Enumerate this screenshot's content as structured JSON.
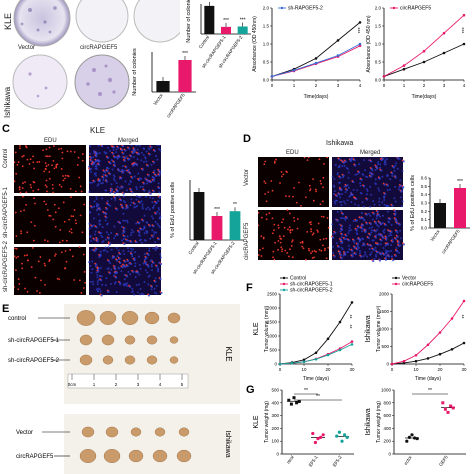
{
  "panel_a": {
    "row_labels": [
      "KLE",
      "Ishikawa"
    ],
    "dish_labels": [
      "Vector",
      "circRAPGEF5"
    ],
    "top_bar_ylabel": "Number of colonies",
    "top_bar_categories": [
      "Control",
      "sh-circRAPGEF5-1",
      "sh-circRAPGEF5-2"
    ],
    "bottom_bar_ylabel": "Number of colonies",
    "bottom_bar_categories": [
      "Vector",
      "circRAPGEF5"
    ],
    "sig": "***"
  },
  "panel_b": {
    "left": {
      "legend": [
        "sh-RAPGEF5-2"
      ],
      "ylabel": "Absorbance (OD 450nm)",
      "xlabel": "Time(days)",
      "xticks": [
        "0",
        "1",
        "2",
        "3",
        "4"
      ],
      "yticks": [
        "0.0",
        "0.5",
        "1.0",
        "1.5",
        "2.0"
      ],
      "sig": "***"
    },
    "right": {
      "legend": [
        "circRAPGEF5"
      ],
      "ylabel": "Absorbance (OD 450 nm)",
      "xlabel": "Time(days)",
      "xticks": [
        "0",
        "1",
        "2",
        "3",
        "4"
      ],
      "yticks": [
        "0.0",
        "0.5",
        "1.0",
        "1.5",
        "2.0"
      ],
      "sig": "***"
    }
  },
  "panel_c": {
    "letter": "C",
    "title": "KLE",
    "columns": [
      "EDU",
      "Merged"
    ],
    "rows": [
      "Control",
      "sh-circRAPGEF5-1",
      "sh-circRAPGEF5-2"
    ],
    "bar_ylabel": "% of EdU positive cells",
    "bar_categories": [
      "Control",
      "sh-circRAPGEF5-1",
      "sh-circRAPGEF5-2"
    ],
    "sig": [
      "***",
      "**"
    ]
  },
  "panel_d": {
    "letter": "D",
    "title": "Ishikawa",
    "columns": [
      "EDU",
      "Merged"
    ],
    "rows": [
      "Vector",
      "circRAPGEF5"
    ],
    "bar_ylabel": "% of EdU positive cells",
    "bar_categories": [
      "Vector",
      "circRAPGEF5"
    ],
    "yticks": [
      "0.0",
      "0.1",
      "0.2",
      "0.3",
      "0.4",
      "0.5",
      "0.6"
    ],
    "sig": "***"
  },
  "panel_e": {
    "letter": "E",
    "rows": [
      "control",
      "sh-circRAPGEF5-1",
      "sh-circRAPGEF5-2",
      "Vector",
      "circRAPGEF5"
    ],
    "side_labels": [
      "KLE",
      "Ishikawa"
    ],
    "ruler_ticks": [
      "0cm",
      "1",
      "2",
      "3",
      "4",
      "5"
    ]
  },
  "panel_f": {
    "letter": "F",
    "left": {
      "legend": [
        "Control",
        "sh-circRAPGEF5-1",
        "sh-circRAPGEF5-2"
      ],
      "ylabel": "Tumor volume (mm³)",
      "side": "KLE",
      "xlabel": "Time (days)",
      "xticks": [
        "0",
        "10",
        "20",
        "30"
      ],
      "yticks": [
        "0",
        "500",
        "1000",
        "1500",
        "2000",
        "2500"
      ],
      "sig": [
        "**",
        "**"
      ]
    },
    "right": {
      "legend": [
        "Vector",
        "circRAPGEF5"
      ],
      "ylabel": "Tumor volume (mm³)",
      "side": "Ishikawa",
      "xlabel": "Time (days)",
      "xticks": [
        "0",
        "10",
        "20",
        "30"
      ],
      "yticks": [
        "0",
        "500",
        "1000",
        "1500",
        "2000"
      ],
      "sig": "**"
    }
  },
  "panel_g": {
    "letter": "G",
    "left": {
      "ylabel": "Tumor weight (mg)",
      "side": "KLE",
      "yticks": [
        "0",
        "100",
        "200",
        "300",
        "400",
        "500"
      ],
      "categories": [
        "ntrol",
        "EF5-1",
        "EF5-2"
      ],
      "sig": [
        "**",
        "**"
      ]
    },
    "right": {
      "ylabel": "Tumor weight (mg)",
      "side": "Ishikawa",
      "yticks": [
        "0",
        "200",
        "400",
        "600",
        "800",
        "1000"
      ],
      "categories": [
        "ector",
        "GEF5"
      ],
      "sig": "**"
    }
  },
  "chart_data": [
    {
      "type": "bar",
      "id": "A-top",
      "ylabel": "Number of colonies",
      "categories": [
        "Control",
        "sh-circRAPGEF5-1",
        "sh-circRAPGEF5-2"
      ],
      "values": [
        150,
        38,
        40
      ],
      "ylim": [
        0,
        160
      ]
    },
    {
      "type": "bar",
      "id": "A-bottom",
      "ylabel": "Number of colonies",
      "categories": [
        "Vector",
        "circRAPGEF5"
      ],
      "values": [
        55,
        160
      ],
      "ylim": [
        0,
        200
      ]
    },
    {
      "type": "line",
      "id": "B-left",
      "xlabel": "Time(days)",
      "ylabel": "Absorbance (OD 450nm)",
      "x": [
        0,
        1,
        2,
        3,
        4
      ],
      "series": [
        {
          "values": [
            0.1,
            0.3,
            0.6,
            1.1,
            1.6
          ]
        },
        {
          "name": "sh-RAPGEF5-2",
          "values": [
            0.1,
            0.25,
            0.45,
            0.65,
            0.95
          ]
        },
        {
          "values": [
            0.1,
            0.27,
            0.47,
            0.68,
            1.0
          ]
        }
      ],
      "ylim": [
        0,
        2
      ]
    },
    {
      "type": "line",
      "id": "B-right",
      "xlabel": "Time(days)",
      "ylabel": "Absorbance (OD 450 nm)",
      "x": [
        0,
        1,
        2,
        3,
        4
      ],
      "series": [
        {
          "values": [
            0.1,
            0.3,
            0.5,
            0.75,
            1.0
          ]
        },
        {
          "name": "circRAPGEF5",
          "values": [
            0.1,
            0.4,
            0.8,
            1.3,
            1.8
          ]
        }
      ],
      "ylim": [
        0,
        2
      ]
    },
    {
      "type": "bar",
      "id": "C-bar",
      "ylabel": "% of EdU positive cells",
      "categories": [
        "Control",
        "sh-circRAPGEF5-1",
        "sh-circRAPGEF5-2"
      ],
      "values": [
        0.4,
        0.2,
        0.24
      ],
      "ylim": [
        0,
        0.5
      ]
    },
    {
      "type": "bar",
      "id": "D-bar",
      "ylabel": "% of EdU positive cells",
      "categories": [
        "Vector",
        "circRAPGEF5"
      ],
      "values": [
        0.3,
        0.48
      ],
      "ylim": [
        0,
        0.6
      ]
    },
    {
      "type": "line",
      "id": "F-left",
      "xlabel": "Time (days)",
      "ylabel": "Tumor volume (mm³)",
      "x": [
        0,
        5,
        10,
        15,
        20,
        25,
        30
      ],
      "series": [
        {
          "name": "Control",
          "values": [
            0,
            50,
            150,
            400,
            900,
            1500,
            2200
          ]
        },
        {
          "name": "sh-circRAPGEF5-1",
          "values": [
            0,
            30,
            80,
            180,
            350,
            550,
            800
          ]
        },
        {
          "name": "sh-circRAPGEF5-2",
          "values": [
            0,
            30,
            80,
            170,
            320,
            500,
            700
          ]
        }
      ],
      "ylim": [
        0,
        2500
      ]
    },
    {
      "type": "line",
      "id": "F-right",
      "xlabel": "Time (days)",
      "ylabel": "Tumor volume (mm³)",
      "x": [
        0,
        5,
        10,
        15,
        20,
        25,
        30
      ],
      "series": [
        {
          "name": "Vector",
          "values": [
            0,
            30,
            80,
            160,
            280,
            420,
            600
          ]
        },
        {
          "name": "circRAPGEF5",
          "values": [
            0,
            80,
            250,
            550,
            900,
            1300,
            1800
          ]
        }
      ],
      "ylim": [
        0,
        2000
      ]
    },
    {
      "type": "scatter",
      "id": "G-left",
      "ylabel": "Tumor weight (mg)",
      "categories": [
        "ntrol",
        "EF5-1",
        "EF5-2"
      ],
      "points": [
        [
          420,
          390,
          440,
          400,
          410
        ],
        [
          160,
          90,
          120,
          130,
          150
        ],
        [
          140,
          170,
          100,
          150,
          130
        ]
      ],
      "ylim": [
        0,
        500
      ]
    },
    {
      "type": "scatter",
      "id": "G-right",
      "ylabel": "Tumor weight (mg)",
      "categories": [
        "ector",
        "GEF5"
      ],
      "points": [
        [
          200,
          260,
          300,
          250,
          240
        ],
        [
          800,
          700,
          650,
          750,
          720
        ]
      ],
      "ylim": [
        0,
        1000
      ]
    }
  ]
}
